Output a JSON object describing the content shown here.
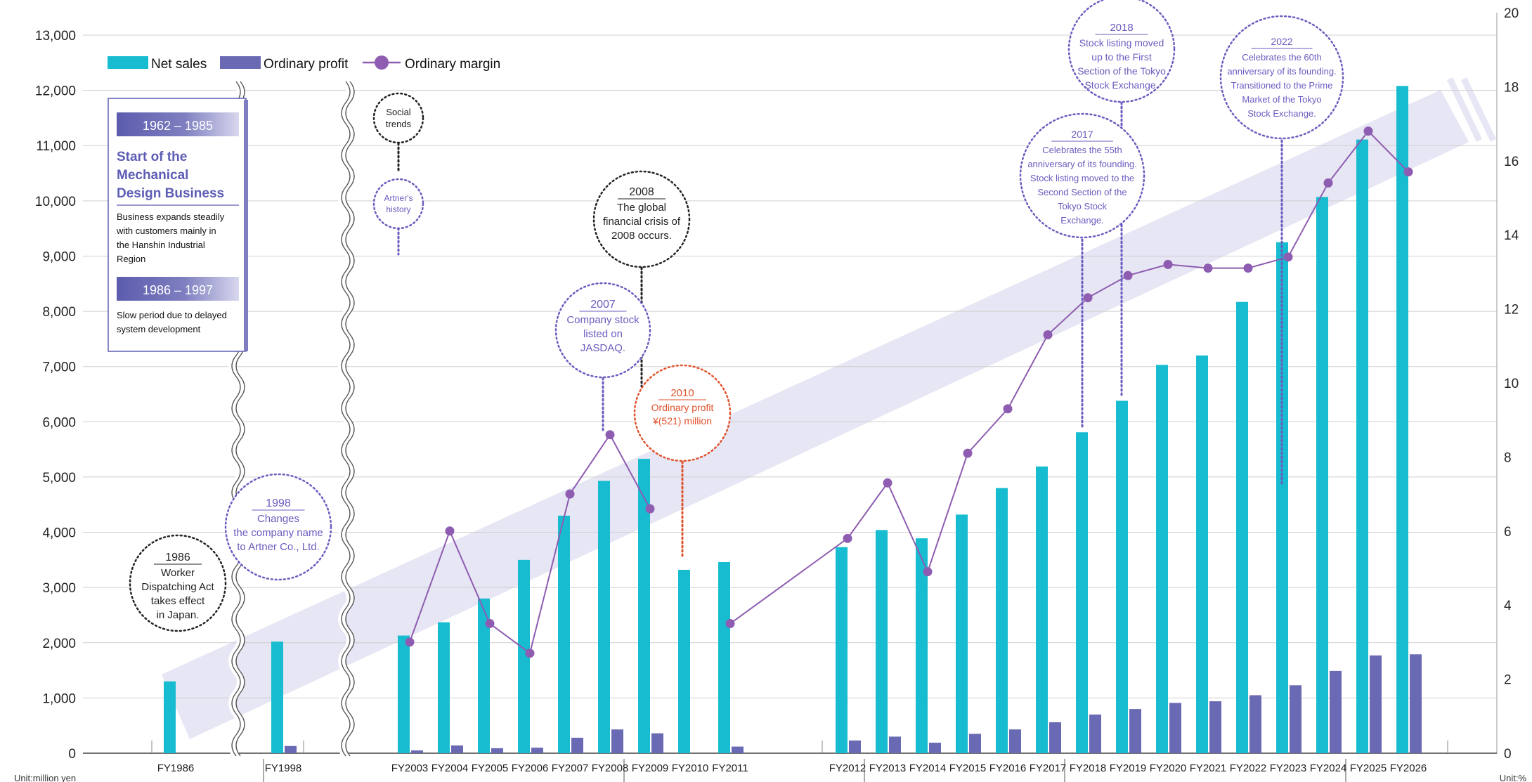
{
  "colors": {
    "net_sales": "#18bcd0",
    "ordinary_profit": "#6a6ab4",
    "ordinary_margin": "#8e5cb0",
    "grid": "#cfcfcf",
    "band": "#e6e6f4",
    "annotation_purple": "#6a5cbf",
    "annotation_red": "#e0522c",
    "annotation_black": "#222222"
  },
  "chart_data": {
    "type": "bar",
    "categories": [
      "FY1986",
      "FY1998",
      "FY2003",
      "FY2004",
      "FY2005",
      "FY2006",
      "FY2007",
      "FY2008",
      "FY2009",
      "FY2010",
      "FY2011",
      "FY2012",
      "FY2013",
      "FY2014",
      "FY2015",
      "FY2016",
      "FY2017",
      "FY2018",
      "FY2019",
      "FY2020",
      "FY2021",
      "FY2022",
      "FY2023",
      "FY2024",
      "FY2025",
      "FY2026"
    ],
    "series": [
      {
        "name": "Net sales",
        "type": "bar",
        "axis": "left",
        "values": [
          1300,
          2020,
          2130,
          2370,
          2800,
          3500,
          4300,
          4930,
          5330,
          3320,
          3460,
          3730,
          4040,
          3890,
          4320,
          4800,
          5190,
          5810,
          6380,
          7030,
          7200,
          8170,
          9250,
          10070,
          11110,
          12080
        ]
      },
      {
        "name": "Ordinary profit",
        "type": "bar",
        "axis": "left",
        "values": [
          null,
          130,
          50,
          140,
          90,
          100,
          280,
          430,
          360,
          null,
          120,
          230,
          300,
          190,
          350,
          430,
          560,
          700,
          800,
          910,
          940,
          1050,
          1230,
          1490,
          1770,
          1790
        ]
      },
      {
        "name": "Ordinary margin",
        "type": "line",
        "axis": "right",
        "values": [
          null,
          null,
          3.0,
          6.0,
          3.5,
          2.7,
          7.0,
          8.6,
          6.6,
          null,
          3.5,
          5.8,
          7.3,
          4.9,
          8.1,
          9.3,
          11.3,
          12.3,
          12.9,
          13.2,
          13.1,
          13.1,
          13.4,
          15.4,
          16.8,
          15.7
        ]
      }
    ],
    "yleft": {
      "ylim": [
        0,
        13000
      ],
      "ticks": [
        "0",
        "1,000",
        "2,000",
        "3,000",
        "4,000",
        "5,000",
        "6,000",
        "7,000",
        "8,000",
        "9,000",
        "10,000",
        "11,000",
        "12,000",
        "13,000"
      ],
      "unit": "Unit:million yen"
    },
    "yright": {
      "ylim": [
        0,
        20
      ],
      "ticks": [
        "0",
        "2",
        "4",
        "6",
        "8",
        "10",
        "12",
        "14",
        "16",
        "18",
        "20"
      ],
      "unit": "Unit:%"
    },
    "grid": true,
    "legend": {
      "position": "top-left",
      "entries": [
        "Net sales",
        "Ordinary profit",
        "Ordinary margin"
      ]
    }
  },
  "history_box": {
    "period1": "1962 – 1985",
    "title": [
      "Start of the",
      "Mechanical",
      "Design Business"
    ],
    "body1": [
      "Business expands steadily",
      "with customers mainly in",
      "the Hanshin Industrial",
      "Region"
    ],
    "period2": "1986 – 1997",
    "body2": [
      "Slow period due to delayed",
      "system development"
    ]
  },
  "annotations": [
    {
      "id": "social-trends",
      "lines": [
        "Social",
        "trends"
      ]
    },
    {
      "id": "artners-history",
      "lines": [
        "Artner's",
        "history"
      ]
    },
    {
      "id": "y1986",
      "year": "1986",
      "lines": [
        "Worker",
        "Dispatching Act",
        "takes effect",
        "in Japan."
      ]
    },
    {
      "id": "y1998",
      "year": "1998",
      "lines": [
        "Changes",
        "the company name",
        "to Artner Co., Ltd."
      ]
    },
    {
      "id": "y2007",
      "year": "2007",
      "lines": [
        "Company stock",
        "listed on",
        "JASDAQ."
      ]
    },
    {
      "id": "y2008",
      "year": "2008",
      "lines": [
        "The global",
        "financial crisis of",
        "2008 occurs."
      ]
    },
    {
      "id": "y2010",
      "year": "2010",
      "lines": [
        "Ordinary profit",
        "¥(521) million"
      ]
    },
    {
      "id": "y2017",
      "year": "2017",
      "lines": [
        "Celebrates the 55th",
        "anniversary of its founding.",
        "Stock listing moved to the",
        "Second Section of the",
        "Tokyo Stock",
        "Exchange."
      ]
    },
    {
      "id": "y2018",
      "year": "2018",
      "lines": [
        "Stock listing moved",
        "up to the First",
        "Section of the Tokyo",
        "Stock Exchange."
      ]
    },
    {
      "id": "y2022",
      "year": "2022",
      "lines": [
        "Celebrates the 60th",
        "anniversary of its founding.",
        "Transitioned to the Prime",
        "Market of the Tokyo",
        "Stock Exchange."
      ]
    }
  ]
}
